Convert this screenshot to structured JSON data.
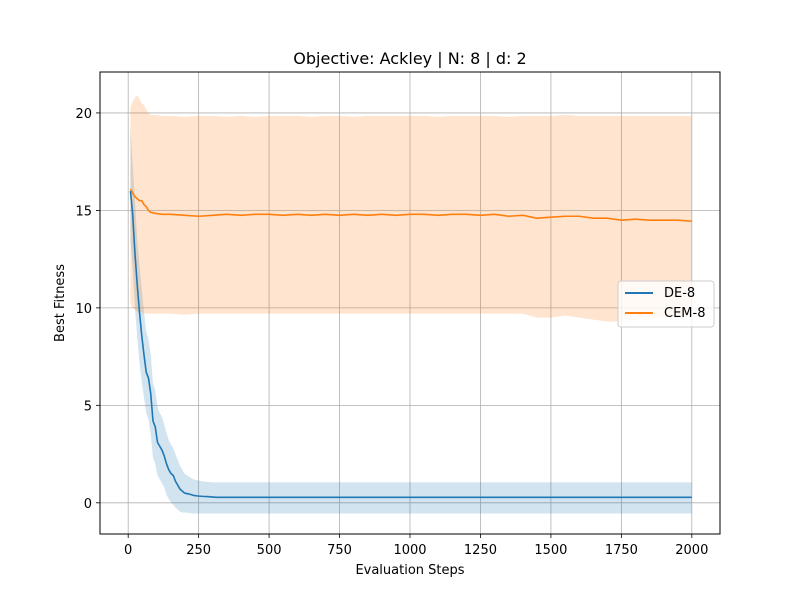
{
  "chart_data": {
    "type": "line",
    "title": "Objective: Ackley | N: 8 | d: 2",
    "xlabel": "Evaluation Steps",
    "ylabel": "Best Fitness",
    "xlim": [
      -100,
      2100
    ],
    "ylim": [
      -1.6,
      22.1
    ],
    "xticks": [
      0,
      250,
      500,
      750,
      1000,
      1250,
      1500,
      1750,
      2000
    ],
    "yticks": [
      0,
      5,
      10,
      15,
      20
    ],
    "grid": true,
    "legend_position": "center-right",
    "series": [
      {
        "name": "DE-8",
        "color": "#1f77b4",
        "band_color": "#1f77b4",
        "x": [
          8,
          16,
          24,
          32,
          40,
          48,
          56,
          64,
          72,
          80,
          88,
          96,
          104,
          112,
          120,
          128,
          136,
          144,
          152,
          160,
          168,
          176,
          184,
          192,
          200,
          216,
          232,
          248,
          264,
          280,
          296,
          312,
          400,
          600,
          800,
          1000,
          1200,
          1400,
          1600,
          1800,
          2000
        ],
        "mean": [
          16.0,
          14.8,
          12.8,
          11.2,
          9.8,
          8.6,
          7.6,
          6.7,
          6.4,
          5.6,
          4.2,
          3.9,
          3.1,
          2.9,
          2.7,
          2.4,
          2.0,
          1.7,
          1.5,
          1.4,
          1.1,
          0.9,
          0.7,
          0.6,
          0.5,
          0.45,
          0.38,
          0.35,
          0.33,
          0.32,
          0.3,
          0.28,
          0.28,
          0.28,
          0.28,
          0.28,
          0.28,
          0.28,
          0.28,
          0.28,
          0.28
        ],
        "lower": [
          13.5,
          12.0,
          10.0,
          8.5,
          7.2,
          6.2,
          5.4,
          4.6,
          4.3,
          3.5,
          2.3,
          2.0,
          1.4,
          1.2,
          1.0,
          0.8,
          0.4,
          0.2,
          0.0,
          -0.1,
          -0.25,
          -0.35,
          -0.45,
          -0.5,
          -0.5,
          -0.52,
          -0.55,
          -0.55,
          -0.55,
          -0.55,
          -0.55,
          -0.55,
          -0.55,
          -0.55,
          -0.55,
          -0.55,
          -0.55,
          -0.55,
          -0.55,
          -0.55,
          -0.55
        ],
        "upper": [
          19.3,
          17.3,
          15.5,
          13.6,
          12.2,
          11.0,
          9.8,
          8.8,
          8.4,
          7.6,
          6.1,
          5.8,
          4.9,
          4.6,
          4.4,
          4.0,
          3.6,
          3.2,
          3.0,
          2.8,
          2.5,
          2.2,
          1.9,
          1.7,
          1.5,
          1.35,
          1.2,
          1.15,
          1.1,
          1.08,
          1.05,
          1.05,
          1.05,
          1.05,
          1.05,
          1.05,
          1.05,
          1.05,
          1.05,
          1.05,
          1.05
        ]
      },
      {
        "name": "CEM-8",
        "color": "#ff7f0e",
        "band_color": "#ff7f0e",
        "x": [
          8,
          16,
          24,
          32,
          40,
          48,
          56,
          64,
          72,
          80,
          96,
          120,
          150,
          200,
          250,
          300,
          350,
          400,
          450,
          500,
          550,
          600,
          650,
          700,
          750,
          800,
          850,
          900,
          950,
          1000,
          1050,
          1100,
          1150,
          1200,
          1250,
          1300,
          1350,
          1400,
          1450,
          1500,
          1550,
          1600,
          1650,
          1700,
          1750,
          1800,
          1850,
          1900,
          1950,
          2000
        ],
        "mean": [
          16.1,
          15.9,
          15.7,
          15.6,
          15.5,
          15.5,
          15.3,
          15.2,
          15.0,
          14.9,
          14.85,
          14.8,
          14.8,
          14.75,
          14.7,
          14.75,
          14.8,
          14.75,
          14.8,
          14.8,
          14.75,
          14.8,
          14.75,
          14.8,
          14.75,
          14.8,
          14.75,
          14.8,
          14.75,
          14.8,
          14.8,
          14.75,
          14.8,
          14.8,
          14.75,
          14.8,
          14.7,
          14.75,
          14.6,
          14.65,
          14.7,
          14.7,
          14.6,
          14.6,
          14.5,
          14.55,
          14.5,
          14.5,
          14.5,
          14.45
        ],
        "lower": [
          10.2,
          10.0,
          9.9,
          9.8,
          9.8,
          9.8,
          9.7,
          9.7,
          9.7,
          9.7,
          9.7,
          9.7,
          9.7,
          9.65,
          9.7,
          9.7,
          9.7,
          9.7,
          9.7,
          9.7,
          9.7,
          9.7,
          9.7,
          9.7,
          9.7,
          9.7,
          9.7,
          9.7,
          9.7,
          9.7,
          9.7,
          9.7,
          9.7,
          9.7,
          9.7,
          9.7,
          9.7,
          9.7,
          9.5,
          9.5,
          9.6,
          9.5,
          9.4,
          9.3,
          9.3,
          9.4,
          9.5,
          9.5,
          9.5,
          9.5
        ],
        "upper": [
          20.3,
          20.6,
          20.8,
          20.9,
          20.7,
          20.5,
          20.4,
          20.2,
          20.0,
          19.9,
          19.9,
          19.85,
          19.85,
          19.8,
          19.85,
          19.85,
          19.8,
          19.85,
          19.8,
          19.85,
          19.85,
          19.85,
          19.8,
          19.85,
          19.85,
          19.8,
          19.85,
          19.85,
          19.85,
          19.85,
          19.85,
          19.8,
          19.85,
          19.85,
          19.85,
          19.85,
          19.8,
          19.85,
          19.85,
          19.85,
          19.9,
          19.85,
          19.85,
          19.85,
          19.85,
          19.85,
          19.85,
          19.85,
          19.85,
          19.85
        ]
      }
    ]
  }
}
